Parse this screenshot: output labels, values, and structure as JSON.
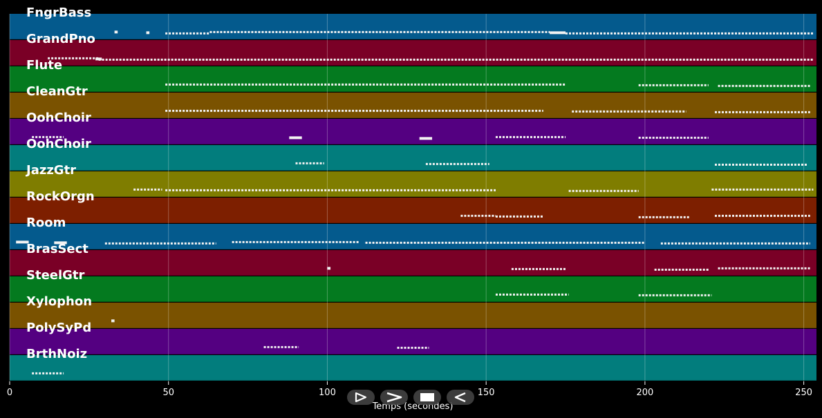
{
  "chart_data": {
    "type": "piano-roll",
    "xlabel": "Temps (secondes)",
    "xlim": [
      0,
      254
    ],
    "xticks": [
      0,
      50,
      100,
      150,
      200,
      250
    ],
    "grid": true,
    "tracks": [
      {
        "name": "FngrBass",
        "color": "#045a8d",
        "segments": [
          [
            33,
            34
          ],
          [
            43,
            44
          ],
          [
            49,
            63
          ],
          [
            63,
            170
          ],
          [
            170,
            175
          ],
          [
            175,
            253
          ]
        ]
      },
      {
        "name": "GrandPno",
        "color": "#7a0026",
        "segments": [
          [
            12,
            28
          ],
          [
            27,
            29
          ],
          [
            28,
            253
          ]
        ]
      },
      {
        "name": "Flute",
        "color": "#047a1f",
        "segments": [
          [
            49,
            175
          ],
          [
            198,
            220
          ],
          [
            223,
            252
          ]
        ]
      },
      {
        "name": "CleanGtr",
        "color": "#7a5200",
        "segments": [
          [
            49,
            168
          ],
          [
            177,
            213
          ],
          [
            222,
            252
          ]
        ]
      },
      {
        "name": "OohChoir",
        "color": "#540081",
        "segments": [
          [
            7,
            17
          ],
          [
            88,
            92
          ],
          [
            129,
            133
          ],
          [
            153,
            175
          ],
          [
            198,
            220
          ]
        ]
      },
      {
        "name": "OohChoir",
        "color": "#027d7d",
        "segments": [
          [
            90,
            99
          ],
          [
            131,
            151
          ],
          [
            222,
            251
          ]
        ]
      },
      {
        "name": "JazzGtr",
        "color": "#7f7d00",
        "segments": [
          [
            39,
            48
          ],
          [
            49,
            153
          ],
          [
            176,
            198
          ],
          [
            221,
            253
          ]
        ]
      },
      {
        "name": "RockOrgn",
        "color": "#7d1f00",
        "segments": [
          [
            142,
            153
          ],
          [
            153,
            168
          ],
          [
            198,
            214
          ],
          [
            222,
            252
          ]
        ]
      },
      {
        "name": "Room",
        "color": "#045a8d",
        "segments": [
          [
            2,
            6
          ],
          [
            14,
            18
          ],
          [
            30,
            65
          ],
          [
            70,
            110
          ],
          [
            112,
            200
          ],
          [
            205,
            252
          ]
        ]
      },
      {
        "name": "BrasSect",
        "color": "#7a0026",
        "segments": [
          [
            100,
            101
          ],
          [
            158,
            175
          ],
          [
            203,
            220
          ],
          [
            223,
            252
          ]
        ]
      },
      {
        "name": "SteelGtr",
        "color": "#047a1f",
        "segments": [
          [
            153,
            176
          ],
          [
            198,
            221
          ]
        ]
      },
      {
        "name": "Xylophon",
        "color": "#7a5200",
        "segments": [
          [
            32,
            33
          ]
        ]
      },
      {
        "name": "PolySyPd",
        "color": "#540081",
        "segments": [
          [
            80,
            91
          ],
          [
            122,
            132
          ]
        ]
      },
      {
        "name": "BrthNoiz",
        "color": "#027d7d",
        "segments": [
          [
            7,
            17
          ]
        ]
      }
    ]
  },
  "controls": {
    "play_icon": "play-outline-icon",
    "forward_icon": "forward-chevron-icon",
    "stop_icon": "stop-square-icon",
    "back_icon": "back-triangle-icon"
  }
}
